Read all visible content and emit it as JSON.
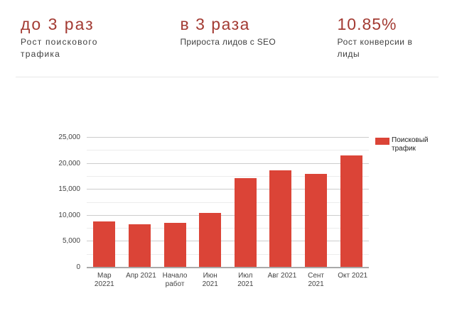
{
  "stats": [
    {
      "value": "до 3 раз",
      "label": "Рост поискового\nтрафика"
    },
    {
      "value": "в 3 раза",
      "label": "Прироста лидов с SEO"
    },
    {
      "value": "10.85%",
      "label": "Рост конверсии в\nлиды"
    }
  ],
  "colors": {
    "accent_red": "#a33b33",
    "bar_red": "#db4437",
    "stat_label_gray": "#3f3f3f",
    "axis_text": "#444444",
    "legend_text": "#222222",
    "gridline_major": "#cccccc",
    "gridline_minor": "#ececec",
    "axis_line": "#a9a9a9",
    "divider": "#e7e7e7",
    "background": "#ffffff"
  },
  "chart_data": {
    "type": "bar",
    "title": "",
    "xlabel": "",
    "ylabel": "",
    "categories": [
      "Мар 20221",
      "Апр 2021",
      "Начало работ",
      "Июн 2021",
      "Июл 2021",
      "Авг 2021",
      "Сент 2021",
      "Окт 2021"
    ],
    "category_lines": [
      [
        "Мар",
        "20221"
      ],
      [
        "Апр 2021"
      ],
      [
        "Начало",
        "работ"
      ],
      [
        "Июн",
        "2021"
      ],
      [
        "Июл",
        "2021"
      ],
      [
        "Авг 2021"
      ],
      [
        "Сент",
        "2021"
      ],
      [
        "Окт 2021"
      ]
    ],
    "series": [
      {
        "name": "Поисковый трафик",
        "legend_lines": [
          "Поисковый",
          "трафик"
        ],
        "color": "#db4437",
        "values": [
          8800,
          8300,
          8500,
          10400,
          17100,
          18700,
          18000,
          21450
        ]
      }
    ],
    "ylim": [
      0,
      25000
    ],
    "ytick_step": 5000,
    "yminor_step": 2500,
    "ytick_labels": [
      "0",
      "5,000",
      "10,000",
      "15,000",
      "20,000",
      "25,000"
    ],
    "grid": true,
    "legend_position": "right"
  }
}
